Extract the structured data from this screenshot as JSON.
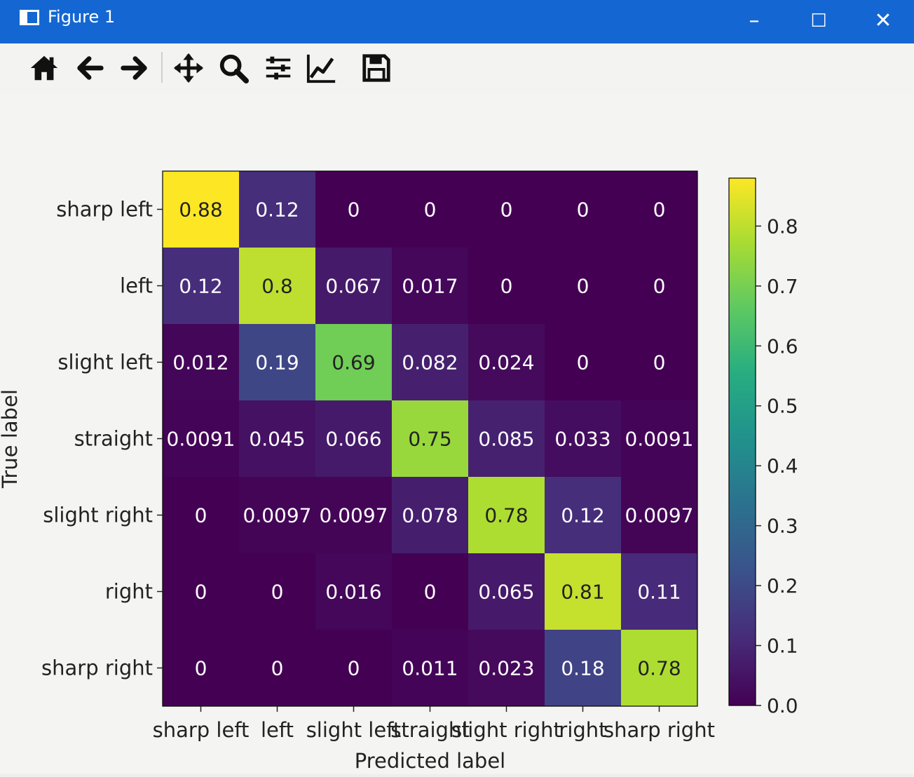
{
  "window": {
    "title": "Figure 1",
    "controls": {
      "minimize": "–",
      "maximize": "☐",
      "close": "✕"
    }
  },
  "toolbar": {
    "icons": [
      "home-icon",
      "back-arrow-icon",
      "forward-arrow-icon",
      "pan-icon",
      "zoom-icon",
      "configure-subplots-icon",
      "edit-axis-icon",
      "save-icon"
    ]
  },
  "chart_data": {
    "type": "heatmap",
    "title": "",
    "xlabel": "Predicted label",
    "ylabel": "True label",
    "x_categories": [
      "sharp left",
      "left",
      "slight left",
      "straight",
      "slight right",
      "right",
      "sharp right"
    ],
    "y_categories": [
      "sharp left",
      "left",
      "slight left",
      "straight",
      "slight right",
      "right",
      "sharp right"
    ],
    "values": [
      [
        "0.88",
        "0.12",
        "0",
        "0",
        "0",
        "0",
        "0"
      ],
      [
        "0.12",
        "0.8",
        "0.067",
        "0.017",
        "0",
        "0",
        "0"
      ],
      [
        "0.012",
        "0.19",
        "0.69",
        "0.082",
        "0.024",
        "0",
        "0"
      ],
      [
        "0.0091",
        "0.045",
        "0.066",
        "0.75",
        "0.085",
        "0.033",
        "0.0091"
      ],
      [
        "0",
        "0.0097",
        "0.0097",
        "0.078",
        "0.78",
        "0.12",
        "0.0097"
      ],
      [
        "0",
        "0",
        "0.016",
        "0",
        "0.065",
        "0.81",
        "0.11"
      ],
      [
        "0",
        "0",
        "0",
        "0.011",
        "0.023",
        "0.18",
        "0.78"
      ]
    ],
    "colormap": "viridis",
    "colorbar": {
      "min": 0.0,
      "max": 0.88,
      "ticks": [
        "0.0",
        "0.1",
        "0.2",
        "0.3",
        "0.4",
        "0.5",
        "0.6",
        "0.7",
        "0.8"
      ]
    },
    "grid": false
  }
}
